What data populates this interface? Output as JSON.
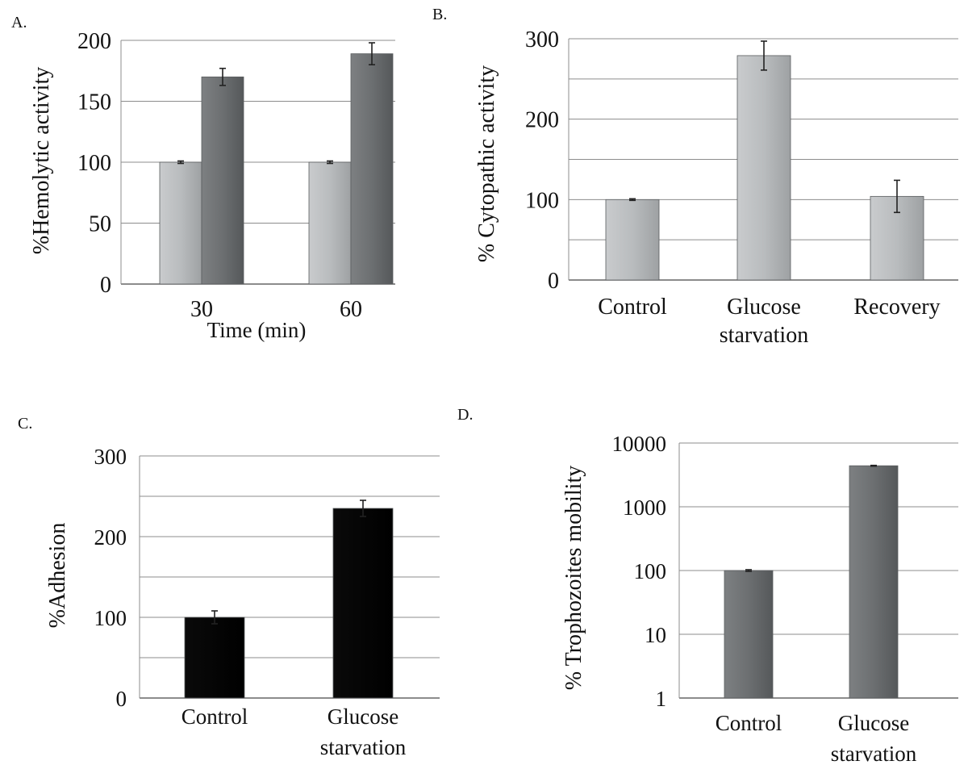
{
  "chart_data": [
    {
      "panel": "A.",
      "type": "bar",
      "categories": [
        "30",
        "60"
      ],
      "series": [
        {
          "values": [
            100,
            100
          ],
          "errors": [
            1,
            1
          ],
          "color": "#a7aaac"
        },
        {
          "values": [
            170,
            189
          ],
          "errors": [
            7,
            9
          ],
          "color": "#6b6e70"
        }
      ],
      "xlabel": "Time (min)",
      "ylabel": "%Hemolytic activity",
      "ylim": [
        0,
        200
      ],
      "yticks": [
        "0",
        "50",
        "100",
        "150",
        "200"
      ],
      "grid": true
    },
    {
      "panel": "B.",
      "type": "bar",
      "categories": [
        "Control",
        "Glucose starvation",
        "Recovery"
      ],
      "category_lines": [
        [
          "Control"
        ],
        [
          "Glucose",
          "starvation"
        ],
        [
          "Recovery"
        ]
      ],
      "values": [
        100,
        279,
        104
      ],
      "errors": [
        1,
        18,
        20
      ],
      "color": "#b5b8ba",
      "xlabel": "",
      "ylabel": "% Cytopathic activity",
      "ylim": [
        0,
        300
      ],
      "yticks": [
        "0",
        "100",
        "200",
        "300"
      ],
      "grid": true
    },
    {
      "panel": "C.",
      "type": "bar",
      "categories": [
        "Control",
        "Glucose starvation"
      ],
      "category_lines": [
        [
          "Control"
        ],
        [
          "Glucose",
          "starvation"
        ]
      ],
      "values": [
        100,
        235
      ],
      "errors": [
        8,
        10
      ],
      "color": "#050505",
      "xlabel": "",
      "ylabel": "%Adhesion",
      "ylim": [
        0,
        300
      ],
      "yticks": [
        "0",
        "100",
        "200",
        "300"
      ],
      "grid": true
    },
    {
      "panel": "D.",
      "type": "bar",
      "categories": [
        "Control",
        "Glucose starvation"
      ],
      "category_lines": [
        [
          "Control"
        ],
        [
          "Glucose",
          "starvation"
        ]
      ],
      "values": [
        100,
        4400
      ],
      "errors": [
        3,
        60
      ],
      "color": "#6b6e70",
      "xlabel": "",
      "ylabel": "% Trophozoites mobility",
      "yscale": "log",
      "ylim": [
        1,
        10000
      ],
      "yticks": [
        "1",
        "10",
        "100",
        "1000",
        "10000"
      ],
      "grid": true
    }
  ]
}
